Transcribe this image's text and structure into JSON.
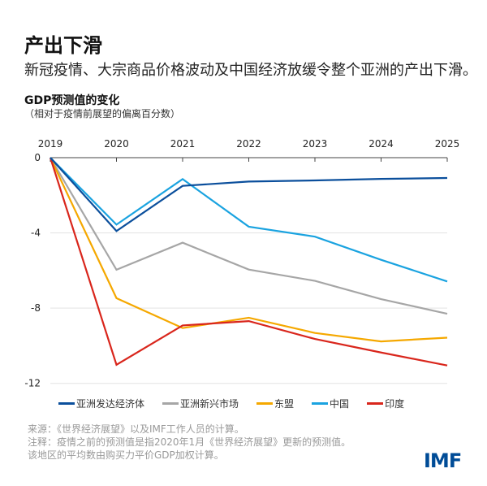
{
  "header": {
    "title": "产出下滑",
    "subtitle": "新冠疫情、大宗商品价格波动及中国经济放缓令整个亚洲的产出下滑。"
  },
  "chart_data": {
    "type": "line",
    "title": "GDP预测值的变化",
    "subtitle": "（相对于疫情前展望的偏离百分数）",
    "x": [
      "2019",
      "2020",
      "2021",
      "2022",
      "2023",
      "2024",
      "2025"
    ],
    "yticks": [
      0,
      -4,
      -8,
      -12
    ],
    "ylim": [
      -12,
      0
    ],
    "grid": true,
    "legend_position": "bottom",
    "series": [
      {
        "name": "亚洲发达经济体",
        "color": "#0b4f9c",
        "values": [
          0,
          -3.9,
          -1.5,
          -1.27,
          -1.21,
          -1.13,
          -1.08
        ]
      },
      {
        "name": "亚洲新兴市场",
        "color": "#a6a6a6",
        "values": [
          0,
          -5.96,
          -4.52,
          -5.95,
          -6.55,
          -7.52,
          -8.3
        ]
      },
      {
        "name": "东盟",
        "color": "#f5a800",
        "values": [
          0,
          -7.47,
          -9.06,
          -8.51,
          -9.32,
          -9.77,
          -9.57
        ]
      },
      {
        "name": "中国",
        "color": "#1aa3e0",
        "values": [
          0,
          -3.56,
          -1.14,
          -3.67,
          -4.2,
          -5.43,
          -6.58
        ]
      },
      {
        "name": "印度",
        "color": "#d9261c",
        "values": [
          0,
          -11.01,
          -8.92,
          -8.69,
          -9.64,
          -10.36,
          -11.05
        ]
      }
    ]
  },
  "notes": [
    "来源：《世界经济展望》以及IMF工作人员的计算。",
    "注释：疫情之前的预测值是指2020年1月《世界经济展望》更新的预测值。",
    "该地区的平均数由购买力平价GDP加权计算。"
  ],
  "logo": "IMF"
}
